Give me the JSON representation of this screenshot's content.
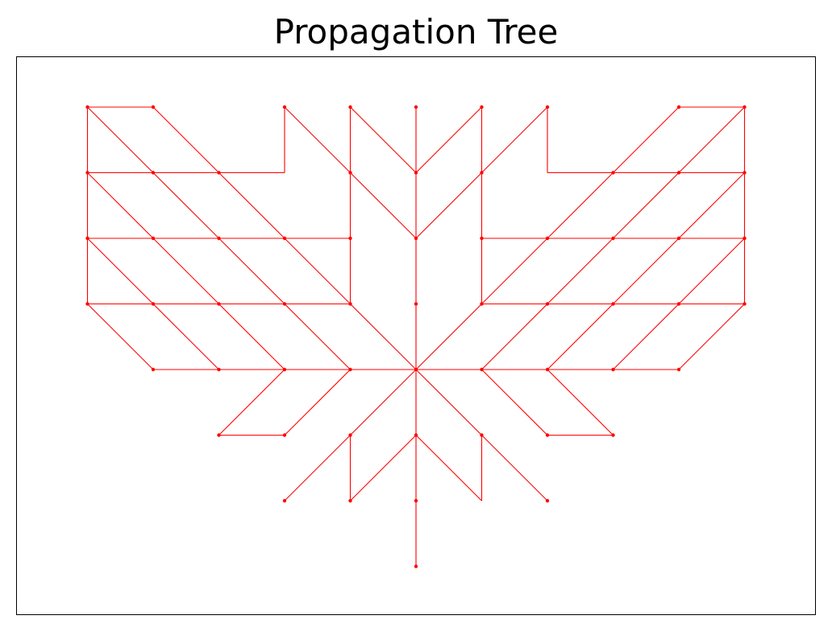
{
  "title": "Propagation Tree",
  "edge_color": "#ff0000",
  "frame_color": "#000000",
  "nodes": [
    [
      0,
      0
    ],
    [
      0,
      1
    ],
    [
      0,
      2
    ],
    [
      0,
      3
    ],
    [
      0,
      4
    ],
    [
      0,
      -1
    ],
    [
      0,
      -2
    ],
    [
      0,
      -3
    ],
    [
      1,
      0
    ],
    [
      2,
      0
    ],
    [
      3,
      0
    ],
    [
      4,
      0
    ],
    [
      -1,
      0
    ],
    [
      -2,
      0
    ],
    [
      -3,
      0
    ],
    [
      -4,
      0
    ],
    [
      1,
      1
    ],
    [
      2,
      2
    ],
    [
      3,
      3
    ],
    [
      4,
      4
    ],
    [
      -1,
      1
    ],
    [
      -2,
      2
    ],
    [
      -3,
      3
    ],
    [
      -4,
      4
    ],
    [
      1,
      -1
    ],
    [
      2,
      -2
    ],
    [
      -1,
      -1
    ],
    [
      -2,
      -2
    ],
    [
      -5,
      1
    ],
    [
      -5,
      2
    ],
    [
      -5,
      3
    ],
    [
      -5,
      4
    ],
    [
      -4,
      1
    ],
    [
      -4,
      2
    ],
    [
      -4,
      3
    ],
    [
      -3,
      1
    ],
    [
      -3,
      2
    ],
    [
      -2,
      1
    ],
    [
      -2,
      4
    ],
    [
      -1,
      2
    ],
    [
      -1,
      3
    ],
    [
      -1,
      4
    ],
    [
      5,
      1
    ],
    [
      5,
      2
    ],
    [
      5,
      3
    ],
    [
      5,
      4
    ],
    [
      4,
      1
    ],
    [
      4,
      2
    ],
    [
      4,
      3
    ],
    [
      3,
      1
    ],
    [
      3,
      2
    ],
    [
      2,
      1
    ],
    [
      2,
      4
    ],
    [
      1,
      2
    ],
    [
      1,
      3
    ],
    [
      1,
      4
    ],
    [
      -3,
      -1
    ],
    [
      -2,
      -1
    ],
    [
      3,
      -1
    ],
    [
      2,
      -1
    ],
    [
      -1,
      -2
    ]
  ],
  "edges": [
    [
      [
        0,
        0
      ],
      [
        0,
        1
      ]
    ],
    [
      [
        0,
        1
      ],
      [
        0,
        2
      ]
    ],
    [
      [
        0,
        2
      ],
      [
        0,
        3
      ]
    ],
    [
      [
        0,
        3
      ],
      [
        0,
        4
      ]
    ],
    [
      [
        0,
        0
      ],
      [
        0,
        -1
      ]
    ],
    [
      [
        0,
        -1
      ],
      [
        0,
        -2
      ]
    ],
    [
      [
        0,
        -2
      ],
      [
        0,
        -3
      ]
    ],
    [
      [
        0,
        0
      ],
      [
        1,
        0
      ]
    ],
    [
      [
        1,
        0
      ],
      [
        2,
        0
      ]
    ],
    [
      [
        2,
        0
      ],
      [
        3,
        0
      ]
    ],
    [
      [
        3,
        0
      ],
      [
        4,
        0
      ]
    ],
    [
      [
        0,
        0
      ],
      [
        -1,
        0
      ]
    ],
    [
      [
        -1,
        0
      ],
      [
        -2,
        0
      ]
    ],
    [
      [
        -2,
        0
      ],
      [
        -3,
        0
      ]
    ],
    [
      [
        -3,
        0
      ],
      [
        -4,
        0
      ]
    ],
    [
      [
        0,
        0
      ],
      [
        1,
        1
      ]
    ],
    [
      [
        1,
        1
      ],
      [
        2,
        2
      ]
    ],
    [
      [
        2,
        2
      ],
      [
        3,
        3
      ]
    ],
    [
      [
        3,
        3
      ],
      [
        4,
        4
      ]
    ],
    [
      [
        0,
        0
      ],
      [
        -1,
        1
      ]
    ],
    [
      [
        -1,
        1
      ],
      [
        -2,
        2
      ]
    ],
    [
      [
        -2,
        2
      ],
      [
        -3,
        3
      ]
    ],
    [
      [
        -3,
        3
      ],
      [
        -4,
        4
      ]
    ],
    [
      [
        0,
        0
      ],
      [
        1,
        -1
      ]
    ],
    [
      [
        1,
        -1
      ],
      [
        2,
        -2
      ]
    ],
    [
      [
        0,
        0
      ],
      [
        -1,
        -1
      ]
    ],
    [
      [
        -1,
        -1
      ],
      [
        -2,
        -2
      ]
    ],
    [
      [
        -4,
        0
      ],
      [
        -5,
        1
      ]
    ],
    [
      [
        -5,
        1
      ],
      [
        -5,
        2
      ]
    ],
    [
      [
        -5,
        2
      ],
      [
        -5,
        3
      ]
    ],
    [
      [
        -5,
        3
      ],
      [
        -5,
        4
      ]
    ],
    [
      [
        -5,
        4
      ],
      [
        -4,
        4
      ]
    ],
    [
      [
        -3,
        0
      ],
      [
        -4,
        1
      ]
    ],
    [
      [
        -4,
        1
      ],
      [
        -5,
        1
      ]
    ],
    [
      [
        -4,
        1
      ],
      [
        -5,
        2
      ]
    ],
    [
      [
        -2,
        0
      ],
      [
        -3,
        1
      ]
    ],
    [
      [
        -3,
        1
      ],
      [
        -4,
        1
      ]
    ],
    [
      [
        -3,
        1
      ],
      [
        -4,
        2
      ]
    ],
    [
      [
        -4,
        2
      ],
      [
        -5,
        2
      ]
    ],
    [
      [
        -4,
        2
      ],
      [
        -5,
        3
      ]
    ],
    [
      [
        -1,
        0
      ],
      [
        -2,
        1
      ]
    ],
    [
      [
        -2,
        1
      ],
      [
        -3,
        1
      ]
    ],
    [
      [
        -2,
        1
      ],
      [
        -3,
        2
      ]
    ],
    [
      [
        -3,
        2
      ],
      [
        -4,
        2
      ]
    ],
    [
      [
        -3,
        2
      ],
      [
        -4,
        3
      ]
    ],
    [
      [
        -4,
        3
      ],
      [
        -5,
        3
      ]
    ],
    [
      [
        -4,
        3
      ],
      [
        -5,
        4
      ]
    ],
    [
      [
        -1,
        1
      ],
      [
        -2,
        1
      ]
    ],
    [
      [
        -2,
        2
      ],
      [
        -3,
        2
      ]
    ],
    [
      [
        -3,
        3
      ],
      [
        -4,
        3
      ]
    ],
    [
      [
        -1,
        1
      ],
      [
        -1,
        2
      ]
    ],
    [
      [
        -1,
        2
      ],
      [
        -1,
        3
      ]
    ],
    [
      [
        -1,
        3
      ],
      [
        -1,
        4
      ]
    ],
    [
      [
        -1,
        2
      ],
      [
        -2,
        2
      ]
    ],
    [
      [
        -1,
        3
      ],
      [
        -2,
        4
      ]
    ],
    [
      [
        -2,
        4
      ],
      [
        -2,
        3
      ]
    ],
    [
      [
        -2,
        3
      ],
      [
        -3,
        3
      ]
    ],
    [
      [
        0,
        3
      ],
      [
        -1,
        4
      ]
    ],
    [
      [
        0,
        2
      ],
      [
        -1,
        3
      ]
    ],
    [
      [
        4,
        0
      ],
      [
        5,
        1
      ]
    ],
    [
      [
        5,
        1
      ],
      [
        5,
        2
      ]
    ],
    [
      [
        5,
        2
      ],
      [
        5,
        3
      ]
    ],
    [
      [
        5,
        3
      ],
      [
        5,
        4
      ]
    ],
    [
      [
        5,
        4
      ],
      [
        4,
        4
      ]
    ],
    [
      [
        3,
        0
      ],
      [
        4,
        1
      ]
    ],
    [
      [
        4,
        1
      ],
      [
        5,
        1
      ]
    ],
    [
      [
        4,
        1
      ],
      [
        5,
        2
      ]
    ],
    [
      [
        2,
        0
      ],
      [
        3,
        1
      ]
    ],
    [
      [
        3,
        1
      ],
      [
        4,
        1
      ]
    ],
    [
      [
        3,
        1
      ],
      [
        4,
        2
      ]
    ],
    [
      [
        4,
        2
      ],
      [
        5,
        2
      ]
    ],
    [
      [
        4,
        2
      ],
      [
        5,
        3
      ]
    ],
    [
      [
        1,
        0
      ],
      [
        2,
        1
      ]
    ],
    [
      [
        2,
        1
      ],
      [
        3,
        1
      ]
    ],
    [
      [
        2,
        1
      ],
      [
        3,
        2
      ]
    ],
    [
      [
        3,
        2
      ],
      [
        4,
        2
      ]
    ],
    [
      [
        3,
        2
      ],
      [
        4,
        3
      ]
    ],
    [
      [
        4,
        3
      ],
      [
        5,
        3
      ]
    ],
    [
      [
        4,
        3
      ],
      [
        5,
        4
      ]
    ],
    [
      [
        1,
        1
      ],
      [
        2,
        1
      ]
    ],
    [
      [
        2,
        2
      ],
      [
        3,
        2
      ]
    ],
    [
      [
        3,
        3
      ],
      [
        4,
        3
      ]
    ],
    [
      [
        1,
        1
      ],
      [
        1,
        2
      ]
    ],
    [
      [
        1,
        2
      ],
      [
        1,
        3
      ]
    ],
    [
      [
        1,
        3
      ],
      [
        1,
        4
      ]
    ],
    [
      [
        1,
        2
      ],
      [
        2,
        2
      ]
    ],
    [
      [
        1,
        3
      ],
      [
        2,
        4
      ]
    ],
    [
      [
        2,
        4
      ],
      [
        2,
        3
      ]
    ],
    [
      [
        2,
        3
      ],
      [
        3,
        3
      ]
    ],
    [
      [
        0,
        3
      ],
      [
        1,
        4
      ]
    ],
    [
      [
        0,
        2
      ],
      [
        1,
        3
      ]
    ],
    [
      [
        -2,
        0
      ],
      [
        -3,
        -1
      ]
    ],
    [
      [
        -3,
        -1
      ],
      [
        -2,
        -1
      ]
    ],
    [
      [
        -1,
        0
      ],
      [
        -2,
        -1
      ]
    ],
    [
      [
        2,
        0
      ],
      [
        3,
        -1
      ]
    ],
    [
      [
        1,
        0
      ],
      [
        2,
        -1
      ]
    ],
    [
      [
        2,
        -1
      ],
      [
        3,
        -1
      ]
    ],
    [
      [
        -1,
        -1
      ],
      [
        -1,
        -2
      ]
    ],
    [
      [
        -1,
        -2
      ],
      [
        0,
        -1
      ]
    ],
    [
      [
        0,
        -1
      ],
      [
        1,
        -2
      ]
    ],
    [
      [
        1,
        -1
      ],
      [
        1,
        -2
      ]
    ]
  ]
}
